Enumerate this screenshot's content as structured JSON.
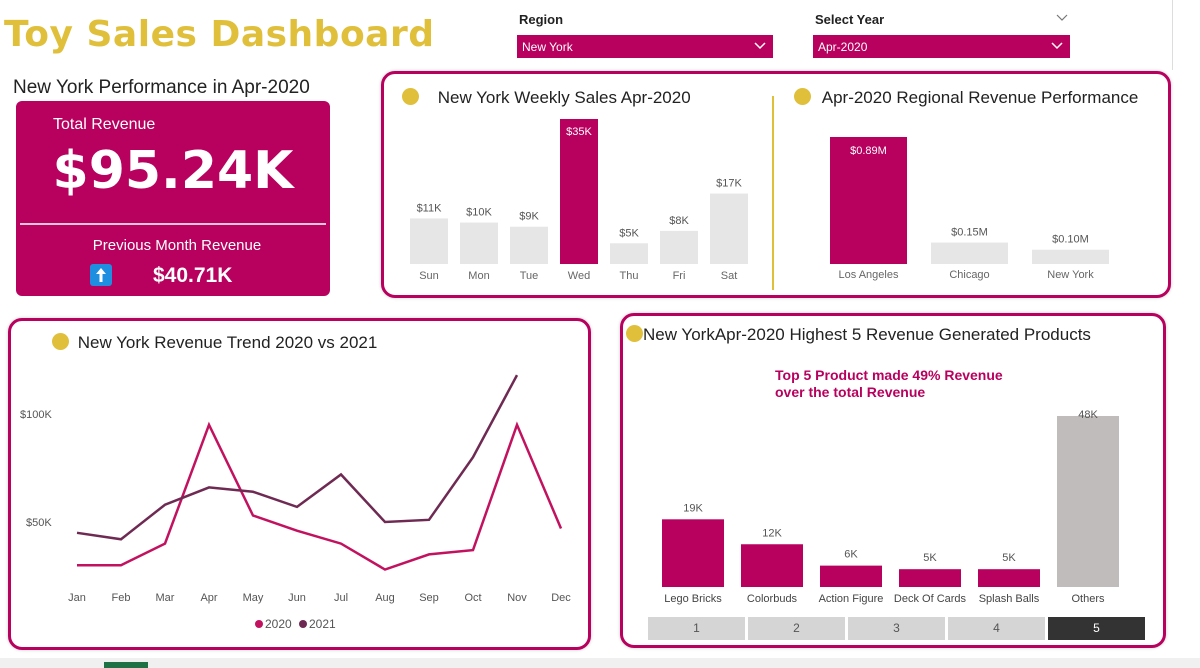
{
  "header": {
    "title": "Toy Sales Dashboard"
  },
  "slicers": {
    "region": {
      "label": "Region",
      "value": "New York"
    },
    "year": {
      "label": "Select Year",
      "value": "Apr-2020"
    }
  },
  "performance": {
    "title": "New York Performance in Apr-2020",
    "total_label": "Total Revenue",
    "total_value": "$95.24K",
    "prev_label": "Previous Month Revenue",
    "prev_value": "$40.71K"
  },
  "weekly": {
    "title": "New York Weekly Sales Apr-2020",
    "chart_data": {
      "type": "bar",
      "categories": [
        "Sun",
        "Mon",
        "Tue",
        "Wed",
        "Thu",
        "Fri",
        "Sat"
      ],
      "values": [
        11,
        10,
        9,
        35,
        5,
        8,
        17
      ],
      "labels": [
        "$11K",
        "$10K",
        "$9K",
        "$35K",
        "$5K",
        "$8K",
        "$17K"
      ],
      "highlight": "Wed",
      "highlight_color": "#b8005e",
      "base_color": "#e6e6e6"
    }
  },
  "regional": {
    "title": "Apr-2020 Regional Revenue Performance",
    "chart_data": {
      "type": "bar",
      "categories": [
        "Los Angeles",
        "Chicago",
        "New York"
      ],
      "values": [
        0.89,
        0.15,
        0.1
      ],
      "labels": [
        "$0.89M",
        "$0.15M",
        "$0.10M"
      ],
      "highlight": "Los Angeles"
    }
  },
  "trend": {
    "title": "New York Revenue Trend 2020 vs 2021",
    "chart_data": {
      "type": "line",
      "x": [
        "Jan",
        "Feb",
        "Mar",
        "Apr",
        "May",
        "Jun",
        "Jul",
        "Aug",
        "Sep",
        "Oct",
        "Nov",
        "Dec"
      ],
      "y_ticks": [
        "$100K",
        "$50K"
      ],
      "series": [
        {
          "name": "2020",
          "color": "#c2125f",
          "values": [
            30,
            30,
            40,
            95,
            53,
            46,
            40,
            28,
            35,
            37,
            95,
            47
          ]
        },
        {
          "name": "2021",
          "color": "#6e2a52",
          "values": [
            45,
            42,
            58,
            66,
            64,
            57,
            72,
            50,
            51,
            80,
            118,
            null
          ]
        }
      ]
    }
  },
  "top5": {
    "title": "New YorkApr-2020 Highest 5 Revenue Generated Products",
    "note_line1": "Top 5 Product made 49% Revenue",
    "note_line2": "over the total Revenue",
    "chart_data": {
      "type": "bar",
      "categories": [
        "Lego Bricks",
        "Colorbuds",
        "Action Figure",
        "Deck Of Cards",
        "Splash Balls",
        "Others"
      ],
      "values": [
        19,
        12,
        6,
        5,
        5,
        48
      ],
      "labels": [
        "19K",
        "12K",
        "6K",
        "5K",
        "5K",
        "48K"
      ],
      "colors": [
        "#b8005e",
        "#b8005e",
        "#b8005e",
        "#b8005e",
        "#b8005e",
        "#c0bcbc"
      ]
    },
    "pages": [
      "1",
      "2",
      "3",
      "4",
      "5"
    ],
    "active_page": "5"
  }
}
